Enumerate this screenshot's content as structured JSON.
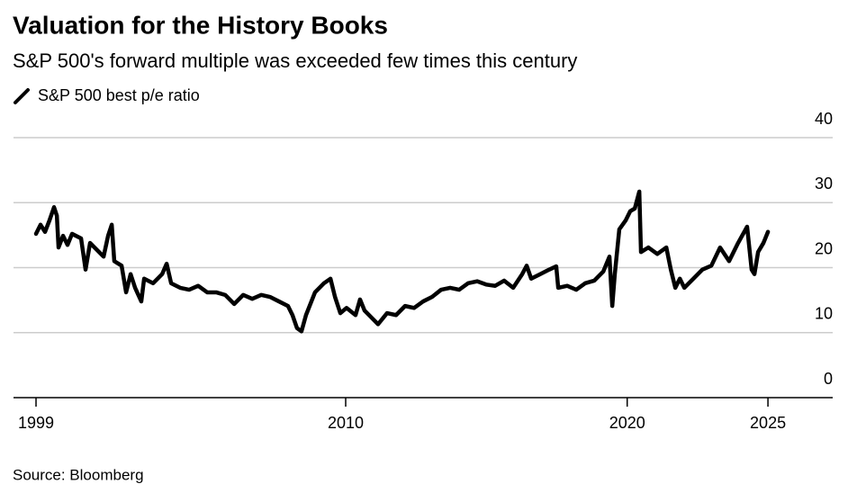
{
  "chart_data": {
    "type": "line",
    "title": "Valuation for the History Books",
    "subtitle": "S&P 500's forward multiple was exceeded few times this century",
    "source": "Source: Bloomberg",
    "x": [
      1999.0,
      1999.16,
      1999.32,
      1999.48,
      1999.64,
      1999.74,
      1999.8,
      1999.96,
      2000.12,
      2000.28,
      2000.6,
      2000.76,
      2000.92,
      2001.24,
      2001.4,
      2001.56,
      2001.69,
      2001.78,
      2002.04,
      2002.2,
      2002.36,
      2002.52,
      2002.74,
      2002.84,
      2003.16,
      2003.48,
      2003.64,
      2003.8,
      2004.12,
      2004.44,
      2004.76,
      2005.08,
      2005.4,
      2005.72,
      2006.04,
      2006.36,
      2006.68,
      2007.0,
      2007.31,
      2007.63,
      2007.95,
      2008.11,
      2008.27,
      2008.43,
      2008.59,
      2008.91,
      2009.23,
      2009.46,
      2009.62,
      2009.81,
      2010.03,
      2010.35,
      2010.51,
      2010.67,
      2010.99,
      2011.15,
      2011.47,
      2011.79,
      2012.11,
      2012.43,
      2012.75,
      2013.07,
      2013.39,
      2013.71,
      2014.03,
      2014.35,
      2014.67,
      2014.99,
      2015.31,
      2015.63,
      2015.95,
      2016.27,
      2016.43,
      2016.59,
      2016.91,
      2017.23,
      2017.48,
      2017.55,
      2017.87,
      2018.19,
      2018.51,
      2018.83,
      2019.15,
      2019.37,
      2019.47,
      2019.56,
      2019.72,
      2019.95,
      2020.11,
      2020.27,
      2020.43,
      2020.49,
      2020.75,
      2021.07,
      2021.39,
      2021.55,
      2021.71,
      2021.87,
      2022.03,
      2022.35,
      2022.67,
      2022.99,
      2023.3,
      2023.62,
      2023.94,
      2024.26,
      2024.42,
      2024.52,
      2024.65,
      2024.84,
      2025.0
    ],
    "series": [
      {
        "name": "S&P 500 best p/e ratio",
        "color": "#000000",
        "values": [
          25.2,
          26.6,
          25.5,
          27.3,
          29.3,
          28.0,
          23.1,
          24.9,
          23.5,
          25.2,
          24.5,
          19.7,
          23.8,
          22.4,
          21.7,
          24.9,
          26.6,
          21.0,
          20.3,
          16.2,
          19.0,
          16.9,
          14.8,
          18.3,
          17.6,
          19.0,
          20.6,
          17.6,
          16.9,
          16.6,
          17.2,
          16.2,
          16.2,
          15.8,
          14.4,
          15.8,
          15.2,
          15.8,
          15.5,
          14.8,
          14.1,
          12.7,
          10.7,
          10.2,
          12.7,
          16.2,
          17.6,
          18.3,
          15.5,
          13.0,
          13.8,
          12.7,
          15.1,
          13.4,
          12.0,
          11.3,
          13.0,
          12.7,
          14.1,
          13.8,
          14.8,
          15.5,
          16.6,
          16.9,
          16.6,
          17.6,
          17.9,
          17.4,
          17.2,
          18.0,
          16.9,
          19.0,
          20.3,
          18.3,
          19.0,
          19.7,
          20.2,
          16.9,
          17.2,
          16.6,
          17.6,
          18.0,
          19.4,
          21.7,
          14.1,
          19.0,
          25.9,
          27.3,
          28.7,
          29.1,
          31.7,
          22.4,
          23.1,
          22.1,
          23.1,
          19.7,
          16.9,
          18.3,
          16.9,
          18.3,
          19.7,
          20.3,
          23.1,
          21.0,
          23.8,
          26.3,
          19.7,
          19.0,
          22.4,
          23.8,
          25.5
        ]
      }
    ],
    "xlim": [
      1998.2,
      2027.3
    ],
    "xticks": [
      1999,
      2010,
      2020,
      2025
    ],
    "ylim": [
      0,
      40
    ],
    "yticks": [
      0,
      10,
      20,
      30,
      40
    ],
    "grid": true
  }
}
